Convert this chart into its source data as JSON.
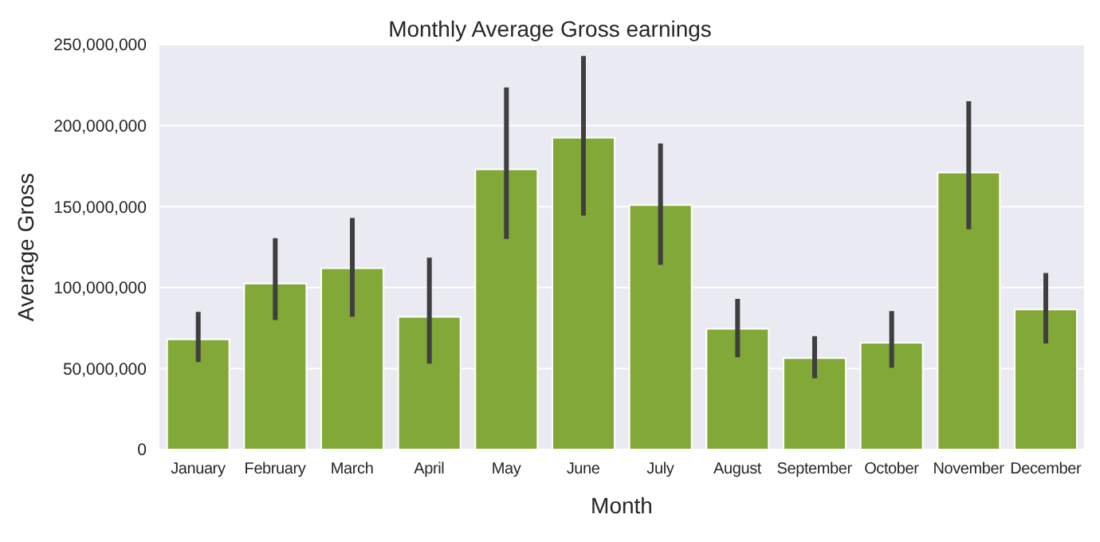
{
  "chart_data": {
    "type": "bar",
    "title": "Monthly Average Gross earnings",
    "xlabel": "Month",
    "ylabel": "Average Gross",
    "categories": [
      "January",
      "February",
      "March",
      "April",
      "May",
      "June",
      "July",
      "August",
      "September",
      "October",
      "November",
      "December"
    ],
    "values": [
      68000000,
      102500000,
      112000000,
      82000000,
      173000000,
      192500000,
      151000000,
      74500000,
      56500000,
      66000000,
      171000000,
      86500000
    ],
    "errors": [
      [
        54000000,
        85000000
      ],
      [
        80000000,
        130500000
      ],
      [
        82000000,
        143000000
      ],
      [
        53000000,
        118500000
      ],
      [
        130000000,
        223500000
      ],
      [
        144500000,
        243000000
      ],
      [
        114000000,
        189000000
      ],
      [
        57000000,
        93000000
      ],
      [
        44000000,
        70000000
      ],
      [
        50500000,
        85500000
      ],
      [
        136000000,
        215000000
      ],
      [
        65500000,
        109000000
      ]
    ],
    "color": "#82a837",
    "ylim": [
      0,
      250000000
    ],
    "yticks": [
      0,
      {
        "value": 50000000,
        "label": "50,000,000"
      },
      {
        "value": 100000000,
        "label": "100,000,000"
      },
      {
        "value": 150000000,
        "label": "150,000,000"
      },
      {
        "value": 200000000,
        "label": "200,000,000"
      },
      {
        "value": 250000000,
        "label": "250,000,000"
      }
    ],
    "grid": "y"
  }
}
